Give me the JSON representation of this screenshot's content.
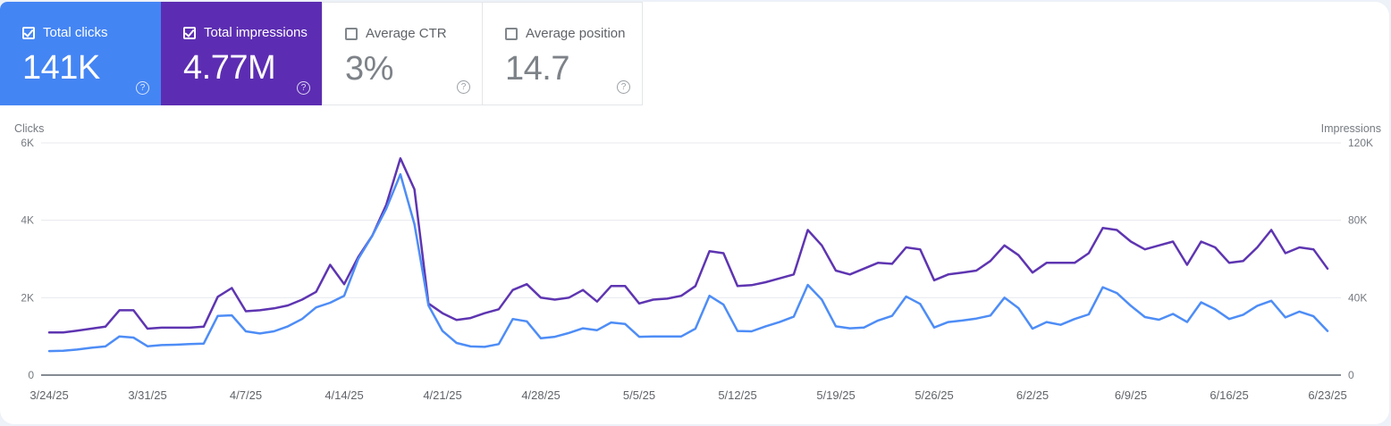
{
  "cards": [
    {
      "id": "total-clicks",
      "label": "Total clicks",
      "value": "141K",
      "checked": true,
      "bg": "#4485f4"
    },
    {
      "id": "total-impressions",
      "label": "Total impressions",
      "value": "4.77M",
      "checked": true,
      "bg": "#5c2db2"
    },
    {
      "id": "average-ctr",
      "label": "Average CTR",
      "value": "3%",
      "checked": false,
      "bg": "#ffffff"
    },
    {
      "id": "average-position",
      "label": "Average position",
      "value": "14.7",
      "checked": false,
      "bg": "#ffffff"
    }
  ],
  "icons": {
    "help_glyph": "?"
  },
  "colors": {
    "clicks_accent": "#4485f4",
    "impressions_accent": "#5c2db2",
    "clicks_line": "#4e8df6",
    "impressions_line": "#5e35b1",
    "gridline": "#e8eaed",
    "axis_line": "#858b92",
    "tick_text": "#757a80",
    "x_tick_text": "#5f6368"
  },
  "chart_data": {
    "type": "line",
    "title": "",
    "left_axis": {
      "title": "Clicks",
      "ticks": [
        {
          "label": "6K",
          "value": 6000
        },
        {
          "label": "4K",
          "value": 4000
        },
        {
          "label": "2K",
          "value": 2000
        },
        {
          "label": "0",
          "value": 0
        }
      ],
      "max": 6000
    },
    "right_axis": {
      "title": "Impressions",
      "ticks": [
        {
          "label": "120K",
          "value": 120000
        },
        {
          "label": "80K",
          "value": 80000
        },
        {
          "label": "40K",
          "value": 40000
        },
        {
          "label": "0",
          "value": 0
        }
      ],
      "max": 120000
    },
    "x_tick_labels": [
      "3/24/25",
      "3/31/25",
      "4/7/25",
      "4/14/25",
      "4/21/25",
      "4/28/25",
      "5/5/25",
      "5/12/25",
      "5/19/25",
      "5/26/25",
      "6/2/25",
      "6/9/25",
      "6/16/25",
      "6/23/25"
    ],
    "x_tick_days": [
      0,
      7,
      14,
      21,
      28,
      35,
      42,
      49,
      56,
      63,
      70,
      77,
      84,
      91
    ],
    "grid": true,
    "legend": "none",
    "dates": [
      "3/24/25",
      "3/25/25",
      "3/26/25",
      "3/27/25",
      "3/28/25",
      "3/29/25",
      "3/30/25",
      "3/31/25",
      "4/1/25",
      "4/2/25",
      "4/3/25",
      "4/4/25",
      "4/5/25",
      "4/6/25",
      "4/7/25",
      "4/8/25",
      "4/9/25",
      "4/10/25",
      "4/11/25",
      "4/12/25",
      "4/13/25",
      "4/14/25",
      "4/15/25",
      "4/16/25",
      "4/17/25",
      "4/18/25",
      "4/19/25",
      "4/20/25",
      "4/21/25",
      "4/22/25",
      "4/23/25",
      "4/24/25",
      "4/25/25",
      "4/26/25",
      "4/27/25",
      "4/28/25",
      "4/29/25",
      "4/30/25",
      "5/1/25",
      "5/2/25",
      "5/3/25",
      "5/4/25",
      "5/5/25",
      "5/6/25",
      "5/7/25",
      "5/8/25",
      "5/9/25",
      "5/10/25",
      "5/11/25",
      "5/12/25",
      "5/13/25",
      "5/14/25",
      "5/15/25",
      "5/16/25",
      "5/17/25",
      "5/18/25",
      "5/19/25",
      "5/20/25",
      "5/21/25",
      "5/22/25",
      "5/23/25",
      "5/24/25",
      "5/25/25",
      "5/26/25",
      "5/27/25",
      "5/28/25",
      "5/29/25",
      "5/30/25",
      "5/31/25",
      "6/1/25",
      "6/2/25",
      "6/3/25",
      "6/4/25",
      "6/5/25",
      "6/6/25",
      "6/7/25",
      "6/8/25",
      "6/9/25",
      "6/10/25",
      "6/11/25",
      "6/12/25",
      "6/13/25",
      "6/14/25",
      "6/15/25",
      "6/16/25",
      "6/17/25",
      "6/18/25",
      "6/19/25",
      "6/20/25",
      "6/21/25",
      "6/22/25",
      "6/23/25"
    ],
    "series": [
      {
        "name": "Clicks",
        "axis": "left",
        "color": "#4e8df6",
        "values": [
          620,
          630,
          660,
          705,
          740,
          1000,
          970,
          745,
          775,
          785,
          800,
          815,
          1530,
          1545,
          1130,
          1075,
          1130,
          1260,
          1450,
          1750,
          1870,
          2050,
          3000,
          3600,
          4300,
          5190,
          3900,
          1800,
          1140,
          830,
          740,
          730,
          800,
          1450,
          1390,
          950,
          990,
          1090,
          1210,
          1160,
          1360,
          1320,
          990,
          1000,
          1000,
          1000,
          1200,
          2050,
          1820,
          1140,
          1130,
          1260,
          1370,
          1510,
          2330,
          1950,
          1260,
          1210,
          1230,
          1410,
          1530,
          2030,
          1840,
          1230,
          1370,
          1410,
          1460,
          1540,
          2000,
          1730,
          1200,
          1370,
          1300,
          1450,
          1570,
          2270,
          2120,
          1790,
          1500,
          1430,
          1580,
          1370,
          1880,
          1700,
          1450,
          1560,
          1790,
          1920,
          1490,
          1640,
          1520,
          1140
        ]
      },
      {
        "name": "Impressions",
        "axis": "right",
        "color": "#5e35b1",
        "values": [
          22000,
          22000,
          23000,
          24000,
          25000,
          33500,
          33500,
          24000,
          24500,
          24500,
          24500,
          25000,
          40500,
          45000,
          33000,
          33500,
          34500,
          36000,
          39000,
          43000,
          57000,
          47000,
          61000,
          72000,
          88000,
          112000,
          96000,
          37000,
          32000,
          28500,
          29500,
          32000,
          34000,
          44000,
          47000,
          40000,
          39000,
          40000,
          44000,
          38000,
          46000,
          46000,
          37000,
          39000,
          39500,
          41000,
          46000,
          64000,
          63000,
          46000,
          46500,
          48000,
          50000,
          52000,
          75000,
          67000,
          54000,
          52000,
          55000,
          58000,
          57500,
          66000,
          65000,
          49000,
          52000,
          53000,
          54000,
          59000,
          67000,
          62000,
          53000,
          58000,
          58000,
          58000,
          63000,
          76000,
          75000,
          69000,
          65000,
          67000,
          69000,
          57000,
          69000,
          66000,
          58000,
          59000,
          66000,
          75000,
          63000,
          66000,
          65000,
          55000
        ]
      }
    ]
  }
}
